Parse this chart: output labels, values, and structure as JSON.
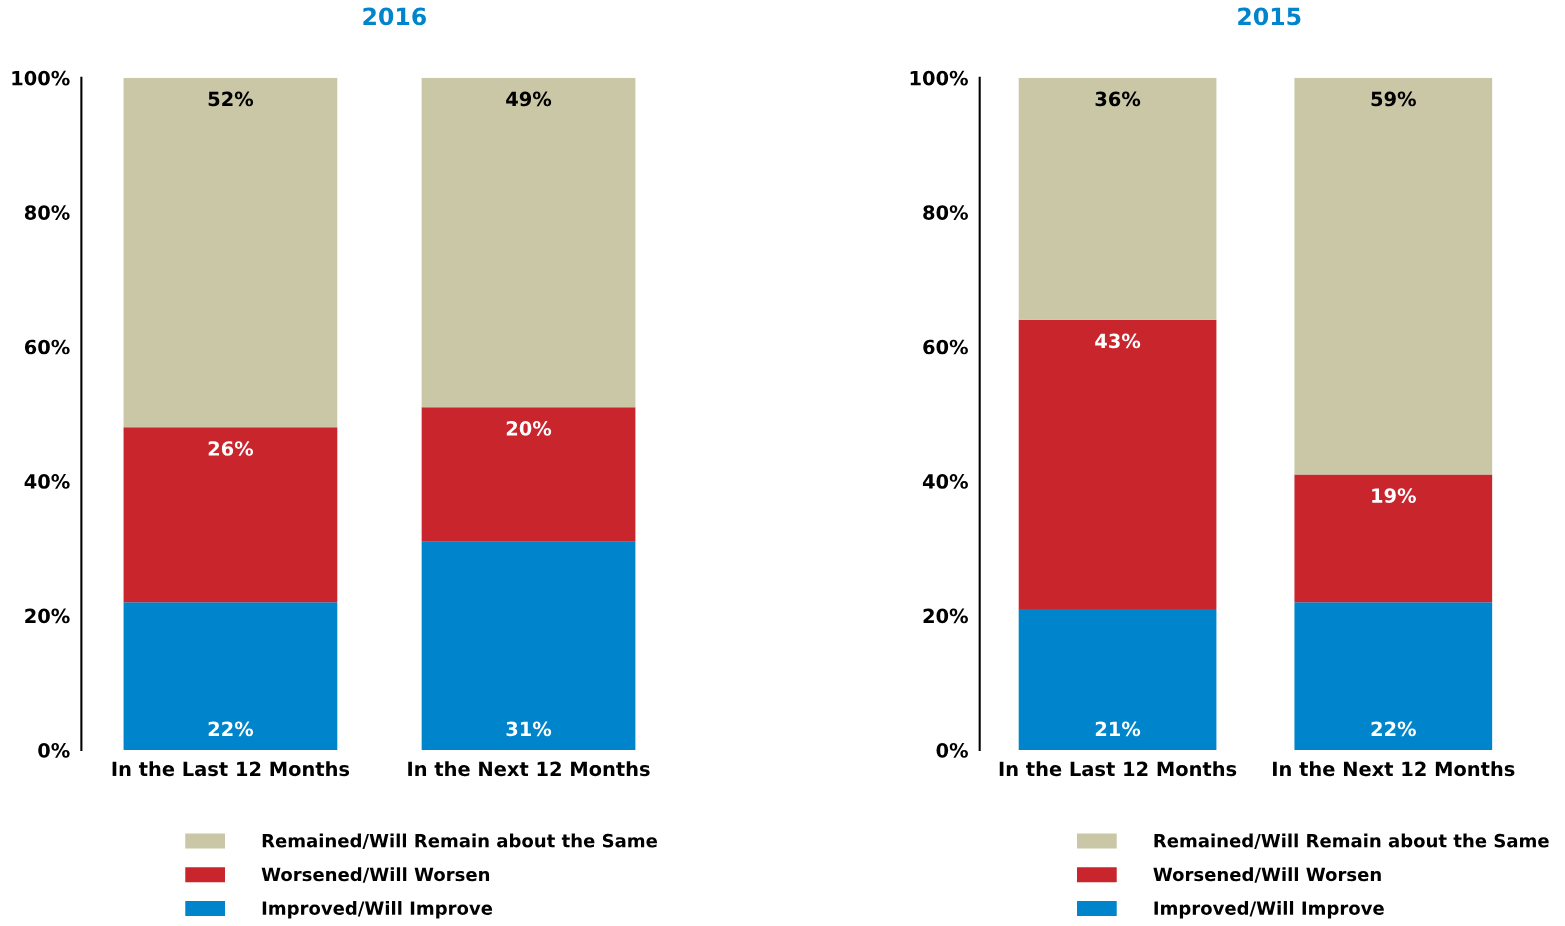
{
  "chart_data": [
    {
      "type": "bar",
      "title": "2016",
      "stacked": true,
      "legend": "bottom",
      "grid": false,
      "categories": [
        "In the Last 12 Months",
        "In the Next 12 Months"
      ],
      "ylim": [
        0,
        100
      ],
      "yticks": [
        {
          "value": 0,
          "label": "0%"
        },
        {
          "value": 20,
          "label": "20%"
        },
        {
          "value": 40,
          "label": "40%"
        },
        {
          "value": 60,
          "label": "60%"
        },
        {
          "value": 80,
          "label": "80%"
        },
        {
          "value": 100,
          "label": "100%"
        }
      ],
      "series": [
        {
          "name": "Improved/Will Improve",
          "color": "#0085cc",
          "values": [
            22,
            31
          ],
          "value_labels": [
            "22%",
            "31%"
          ]
        },
        {
          "name": "Worsened/Will Worsen",
          "color": "#c8252d",
          "values": [
            26,
            20
          ],
          "value_labels": [
            "26%",
            "20%"
          ]
        },
        {
          "name": "Remained/Will Remain about the Same",
          "color": "#c9c7a5",
          "values": [
            52,
            49
          ],
          "value_labels": [
            "52%",
            "49%"
          ]
        }
      ]
    },
    {
      "type": "bar",
      "title": "2015",
      "stacked": true,
      "legend": "bottom",
      "grid": false,
      "categories": [
        "In the Last 12 Months",
        "In the Next 12 Months"
      ],
      "ylim": [
        0,
        100
      ],
      "yticks": [
        {
          "value": 0,
          "label": "0%"
        },
        {
          "value": 20,
          "label": "20%"
        },
        {
          "value": 40,
          "label": "40%"
        },
        {
          "value": 60,
          "label": "60%"
        },
        {
          "value": 80,
          "label": "80%"
        },
        {
          "value": 100,
          "label": "100%"
        }
      ],
      "series": [
        {
          "name": "Improved/Will Improve",
          "color": "#0085cc",
          "values": [
            21,
            22
          ],
          "value_labels": [
            "21%",
            "22%"
          ]
        },
        {
          "name": "Worsened/Will Worsen",
          "color": "#c8252d",
          "values": [
            43,
            19
          ],
          "value_labels": [
            "43%",
            "19%"
          ]
        },
        {
          "name": "Remained/Will Remain about the Same",
          "color": "#c9c7a5",
          "values": [
            36,
            59
          ],
          "value_labels": [
            "36%",
            "59%"
          ]
        }
      ]
    }
  ]
}
